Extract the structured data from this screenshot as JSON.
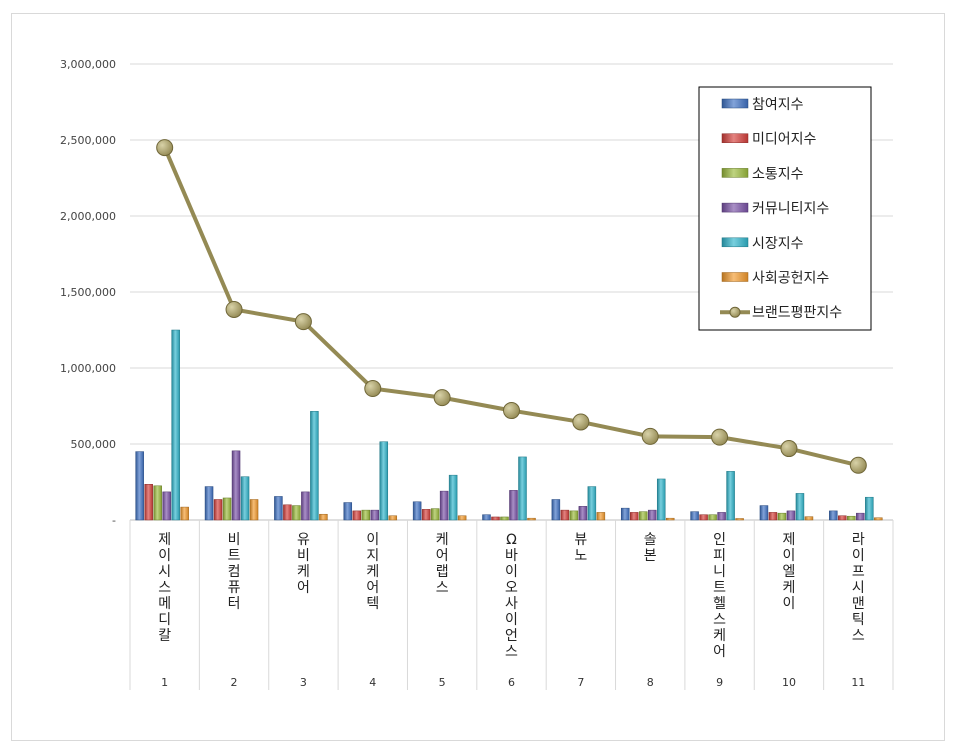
{
  "chart_data": {
    "type": "bar",
    "title": "",
    "xlabel": "",
    "ylabel": "",
    "ylim": [
      0,
      3000000
    ],
    "y_ticks": [
      "-",
      "500,000",
      "1,000,000",
      "1,500,000",
      "2,000,000",
      "2,500,000",
      "3,000,000"
    ],
    "grid": true,
    "legend_position": "top-right",
    "categories": [
      {
        "rank": "1",
        "name": "제이시스메디칼"
      },
      {
        "rank": "2",
        "name": "비트컴퓨터"
      },
      {
        "rank": "3",
        "name": "유비케어"
      },
      {
        "rank": "4",
        "name": "이지케어텍"
      },
      {
        "rank": "5",
        "name": "케어랩스"
      },
      {
        "rank": "6",
        "name": "Ω바이오사이언스"
      },
      {
        "rank": "7",
        "name": "뷰노"
      },
      {
        "rank": "8",
        "name": "솔본"
      },
      {
        "rank": "9",
        "name": "인피니트헬스케어"
      },
      {
        "rank": "10",
        "name": "제이엘케이"
      },
      {
        "rank": "11",
        "name": "라이프시맨틱스"
      }
    ],
    "series": [
      {
        "name": "참여지수",
        "type": "bar",
        "color": "#3f72c4",
        "values": [
          450000,
          220000,
          155000,
          115000,
          120000,
          35000,
          135000,
          78000,
          55000,
          95000,
          60000
        ]
      },
      {
        "name": "미디어지수",
        "type": "bar",
        "color": "#d6403c",
        "values": [
          235000,
          135000,
          100000,
          60000,
          70000,
          20000,
          65000,
          50000,
          35000,
          50000,
          28000
        ]
      },
      {
        "name": "소통지수",
        "type": "bar",
        "color": "#9bbb3c",
        "values": [
          225000,
          145000,
          95000,
          65000,
          75000,
          20000,
          60000,
          55000,
          35000,
          45000,
          25000
        ]
      },
      {
        "name": "커뮤니티지수",
        "type": "bar",
        "color": "#7a52a8",
        "values": [
          185000,
          455000,
          185000,
          65000,
          190000,
          195000,
          90000,
          65000,
          50000,
          60000,
          45000
        ]
      },
      {
        "name": "시장지수",
        "type": "bar",
        "color": "#30b5cc",
        "values": [
          1250000,
          285000,
          715000,
          515000,
          295000,
          415000,
          220000,
          270000,
          320000,
          175000,
          150000
        ]
      },
      {
        "name": "사회공헌지수",
        "type": "bar",
        "color": "#f39a2c",
        "values": [
          85000,
          135000,
          38000,
          28000,
          28000,
          12000,
          50000,
          12000,
          10000,
          22000,
          15000
        ]
      },
      {
        "name": "브랜드평판지수",
        "type": "line",
        "color": "#948a54",
        "values": [
          2450000,
          1385000,
          1305000,
          865000,
          805000,
          720000,
          645000,
          550000,
          545000,
          470000,
          360000
        ]
      }
    ]
  }
}
